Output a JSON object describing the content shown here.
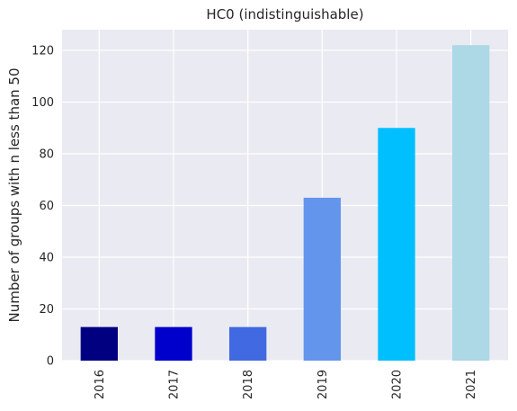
{
  "chart_data": {
    "type": "bar",
    "title": "HC0 (indistinguishable)",
    "xlabel": "",
    "ylabel": "Number of groups with n less than 50",
    "categories": [
      "2016",
      "2017",
      "2018",
      "2019",
      "2020",
      "2021"
    ],
    "values": [
      13,
      13,
      13,
      63,
      90,
      122
    ],
    "colors": [
      "#000080",
      "#0000cd",
      "#4169e1",
      "#6495ed",
      "#00bfff",
      "#add8e6"
    ],
    "ylim": [
      0,
      128
    ],
    "yticks": [
      0,
      20,
      40,
      60,
      80,
      100,
      120
    ],
    "grid": true,
    "background": "#eaeaf2",
    "legend": "none"
  }
}
